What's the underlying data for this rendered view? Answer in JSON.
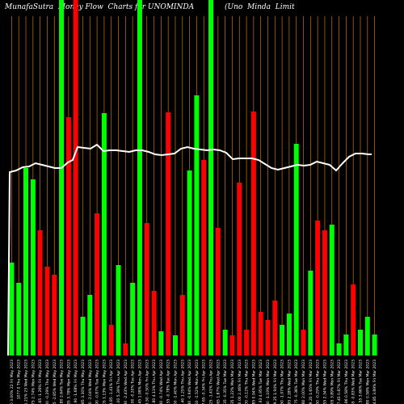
{
  "chart_data": {
    "type": "bar",
    "title": "MunafaSutra  Money Flow  Charts for UNOMINDA",
    "subtitle": "(Uno  Minda  Limit",
    "ylim": [
      0,
      440
    ],
    "baseline_line_level": 440,
    "grid": "vertical orange lines at every bar",
    "colors": {
      "up": "#00ff00",
      "down": "#ff0000",
      "line": "#ffffff",
      "grid": "#cc7700",
      "background": "#000000"
    },
    "categories": [
      "1093.00 3.00% 22 Fri May 2023",
      "1077.0 Thu May 2023",
      "1022.65 1.21% 23 Wed May 2023",
      "1031.75 2.74% Mon May 2023",
      "1046.65 -1.26% Fri May 2023",
      "1020.00 -0.29% Thu May 2023",
      "1025.75 -2.85% Wed May 2023",
      "1059.80 2.64% Tue May 2023",
      "1084.85 3.78% Mon May 2023",
      "1011.90 -1.68% Fri May 2023",
      "1082.85 3.30% Thu May 2023",
      "1098.80 -2.04% Wed May 2023",
      "1089.90 -0.87% Tue May 2023",
      "1103.05 1.13% Mon May 2023",
      "1094.85 -1.41% Fri Apr 2023",
      "1105.00 5.39% Thu Apr 2023",
      "1061.80 -2.43% Wed Apr 2023",
      "1075.00 -0.20% Tue Apr 2023",
      "1085.45 1.98% Mon Apr 2023",
      "1073.50 -0.50% Fri Apr 2023",
      "1052.80 4.13% Thu Apr 2023",
      "1041.80 -0.74% Wed Apr 2023",
      "1027.55 -0.78% Tue Apr 2023",
      "998.60 -1.40% Mon Apr 2023",
      "994.40 1.25% Thu Apr 2023",
      "1012.80 -0.94% Wed Apr 2023",
      "1022.50 -1.52% Mon Apr 2023",
      "1017.65 -0.34% Fri Apr 2023",
      "1023.25 -1.41% Thu Apr 2023",
      "1039.65 1.87% Wed Apr 2023",
      "1031.35 -0.35% Tue Mar 2023",
      "1051.35 1.22% Mon Mar 2023",
      "1060.00 2.46% Fri Mar 2023",
      "1037.00 -0.12% Thu Mar 2023",
      "1077.85 0.94% Wed Mar 2023",
      "1078.93 4.95% Tue Mar 2023",
      "1029.60 -1.19% Mon Mar 2023",
      "1039.25 1.94% Fri Mar 2023",
      "1061.50 -1.97% Thu Mar 2023",
      "1066.95 2.18% Wed Mar 2023",
      "1061.75 -0.38% Tue Mar 2023",
      "1074.80 2.00% Mon Mar 2023",
      "1069.20 1.65% Fri Mar 2023",
      "1047.50 -0.29% Thu Mar 2023",
      "1045.55 2.34% Wed Mar 2023",
      "1088.05 3.89% Mon Mar 2023",
      "1077.45 0.87% Fri Mar 2023",
      "1089.86 0.58% Thu Mar 2023",
      "1092.65 -0.83% Wed Mar 2023",
      "1021.55 3.66% Tue Mar 2023",
      "1035.80 0.58% Mon Mar 2023",
      "1004.85 3.89% Fri Mar 2023"
    ],
    "series": [
      {
        "colors": [
          "g",
          "g",
          "g",
          "g",
          "r",
          "r",
          "r",
          "g",
          "r",
          "r",
          "g",
          "g",
          "r",
          "g",
          "r",
          "g",
          "r",
          "g",
          "g",
          "r",
          "r",
          "g",
          "r",
          "g",
          "r",
          "g",
          "g",
          "r",
          "g",
          "r",
          "g",
          "r",
          "r",
          "r",
          "r",
          "r",
          "r",
          "r",
          "g",
          "g",
          "g",
          "r",
          "g",
          "r",
          "r",
          "g",
          "g",
          "g",
          "r",
          "g",
          "g",
          "g"
        ],
        "values": [
          115,
          90,
          232,
          218,
          155,
          110,
          100,
          440,
          295,
          440,
          48,
          75,
          176,
          300,
          38,
          112,
          15,
          90,
          440,
          164,
          80,
          30,
          301,
          25,
          75,
          229,
          322,
          242,
          440,
          158,
          32,
          25,
          214,
          32,
          302,
          54,
          44,
          68,
          38,
          52,
          262,
          32,
          105,
          167,
          155,
          162,
          15,
          26,
          88,
          32,
          48,
          26
        ]
      }
    ],
    "line": [
      228,
      230,
      231,
      233,
      234,
      235,
      237,
      240,
      243,
      246,
      248,
      250,
      251,
      252,
      253,
      254,
      255,
      256,
      258,
      259,
      260,
      262,
      264,
      266,
      268,
      270,
      272,
      274
    ]
  }
}
